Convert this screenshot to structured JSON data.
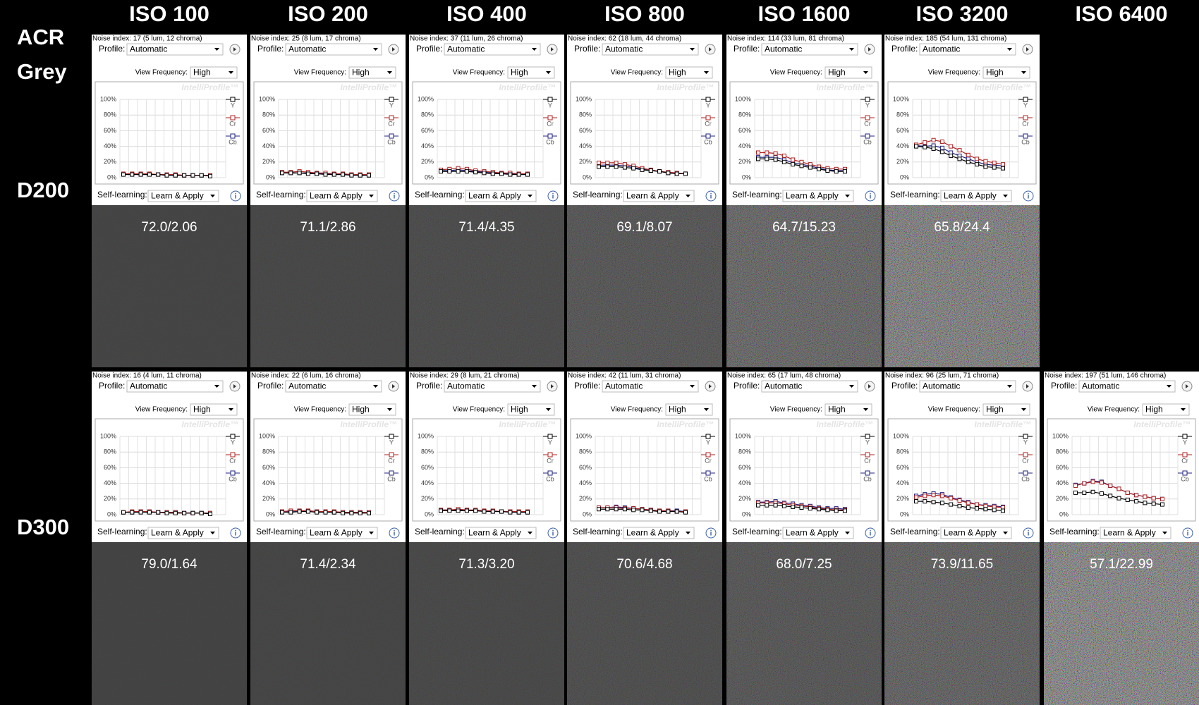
{
  "columns": [
    "ISO 100",
    "ISO 200",
    "ISO 400",
    "ISO 800",
    "ISO 1600",
    "ISO 3200",
    "ISO 6400"
  ],
  "corner_label": [
    "ACR",
    "Grey"
  ],
  "panel_ui": {
    "profile_label": "Profile:",
    "profile": "Automatic",
    "view_frequency_label": "View Frequency:",
    "view_frequency": "High",
    "watermark": "IntelliProfile™",
    "self_learning_label": "Self-learning:",
    "self_learning": "Learn & Apply",
    "info": "i",
    "ylim": [
      0,
      100
    ],
    "yticks": [
      {
        "value": 0,
        "label": "0%"
      },
      {
        "value": 20,
        "label": "20%"
      },
      {
        "value": 40,
        "label": "40%"
      },
      {
        "value": 60,
        "label": "60%"
      },
      {
        "value": 80,
        "label": "80%"
      },
      {
        "value": 100,
        "label": "100%"
      }
    ],
    "series": [
      {
        "name": "Y",
        "color": "#000000"
      },
      {
        "name": "Cr",
        "color": "#b02020"
      },
      {
        "name": "Cb",
        "color": "#202080"
      }
    ]
  },
  "rows": [
    {
      "label": "D200",
      "panels": [
        {
          "noise_index": "Noise index:  17 (5 lum, 12 chroma)",
          "result": "72.0/2.06",
          "series": [
            [
              4,
              4,
              4,
              4,
              4,
              3,
              3,
              3,
              3,
              3,
              2
            ],
            [
              5,
              5,
              5,
              5,
              4,
              4,
              4,
              3,
              3,
              3,
              3
            ],
            [
              4,
              4,
              4,
              4,
              4,
              3,
              3,
              3,
              3,
              3,
              2
            ]
          ]
        },
        {
          "noise_index": "Noise index:  25 (8 lum, 17 chroma)",
          "result": "71.1/2.86",
          "series": [
            [
              6,
              6,
              6,
              5,
              5,
              4,
              4,
              4,
              3,
              3,
              3
            ],
            [
              7,
              7,
              8,
              7,
              6,
              6,
              5,
              5,
              4,
              4,
              4
            ],
            [
              6,
              6,
              6,
              6,
              5,
              5,
              4,
              4,
              4,
              3,
              3
            ]
          ]
        },
        {
          "noise_index": "Noise index:  37 (11 lum, 26 chroma)",
          "result": "71.4/4.35",
          "series": [
            [
              8,
              8,
              8,
              8,
              7,
              6,
              5,
              5,
              4,
              4,
              4
            ],
            [
              10,
              11,
              12,
              11,
              9,
              8,
              7,
              6,
              6,
              5,
              5
            ],
            [
              9,
              9,
              10,
              9,
              8,
              7,
              6,
              5,
              5,
              4,
              4
            ]
          ]
        },
        {
          "noise_index": "Noise index:  62 (18 lum, 44 chroma)",
          "result": "69.1/8.07",
          "series": [
            [
              14,
              14,
              14,
              13,
              12,
              10,
              9,
              8,
              6,
              5,
              5
            ],
            [
              19,
              19,
              19,
              17,
              15,
              12,
              10,
              8,
              7,
              6,
              5
            ],
            [
              16,
              16,
              16,
              15,
              13,
              11,
              9,
              8,
              6,
              5,
              5
            ]
          ]
        },
        {
          "noise_index": "Noise index:  114 (33 lum, 81 chroma)",
          "result": "64.7/15.23",
          "series": [
            [
              24,
              24,
              23,
              20,
              17,
              15,
              13,
              11,
              9,
              8,
              8
            ],
            [
              32,
              32,
              31,
              28,
              23,
              20,
              17,
              14,
              12,
              11,
              11
            ],
            [
              26,
              26,
              26,
              23,
              19,
              17,
              15,
              12,
              10,
              9,
              9
            ]
          ]
        },
        {
          "noise_index": "Noise index:  185 (54 lum, 131 chroma)",
          "result": "65.8/24.4",
          "series": [
            [
              40,
              39,
              37,
              33,
              28,
              24,
              20,
              17,
              14,
              13,
              12
            ],
            [
              42,
              45,
              48,
              46,
              40,
              35,
              29,
              24,
              21,
              19,
              17
            ],
            [
              41,
              40,
              41,
              38,
              32,
              28,
              24,
              20,
              17,
              16,
              15
            ]
          ]
        }
      ]
    },
    {
      "label": "D300",
      "panels": [
        {
          "noise_index": "Noise index:  16 (4 lum, 11 chroma)",
          "result": "79.0/1.64",
          "series": [
            [
              3,
              3,
              3,
              3,
              3,
              2,
              2,
              2,
              2,
              2,
              1
            ],
            [
              3,
              4,
              4,
              4,
              3,
              3,
              3,
              2,
              2,
              2,
              2
            ],
            [
              3,
              3,
              4,
              4,
              3,
              3,
              3,
              2,
              2,
              2,
              2
            ]
          ]
        },
        {
          "noise_index": "Noise index:  22 (6 lum, 16 chroma)",
          "result": "71.4/2.34",
          "series": [
            [
              3,
              3,
              4,
              4,
              3,
              3,
              3,
              2,
              2,
              2,
              2
            ],
            [
              4,
              5,
              5,
              5,
              4,
              4,
              4,
              3,
              3,
              3,
              3
            ],
            [
              4,
              4,
              5,
              5,
              4,
              4,
              3,
              3,
              3,
              3,
              2
            ]
          ]
        },
        {
          "noise_index": "Noise index:  29 (8 lum, 21 chroma)",
          "result": "71.3/3.20",
          "series": [
            [
              5,
              5,
              5,
              5,
              5,
              4,
              4,
              4,
              3,
              3,
              3
            ],
            [
              6,
              6,
              7,
              6,
              6,
              5,
              5,
              4,
              4,
              4,
              4
            ],
            [
              6,
              6,
              6,
              6,
              5,
              5,
              4,
              4,
              4,
              3,
              3
            ]
          ]
        },
        {
          "noise_index": "Noise index:  42 (11 lum, 31 chroma)",
          "result": "70.6/4.68",
          "series": [
            [
              7,
              7,
              7,
              7,
              6,
              6,
              5,
              4,
              4,
              4,
              3
            ],
            [
              9,
              9,
              9,
              8,
              8,
              7,
              6,
              5,
              5,
              4,
              4
            ],
            [
              9,
              9,
              10,
              9,
              8,
              7,
              6,
              5,
              5,
              5,
              4
            ]
          ]
        },
        {
          "noise_index": "Noise index:  65 (17 lum, 48 chroma)",
          "result": "68.0/7.25",
          "series": [
            [
              12,
              12,
              12,
              11,
              10,
              9,
              8,
              7,
              6,
              5,
              5
            ],
            [
              15,
              15,
              15,
              14,
              12,
              11,
              10,
              8,
              7,
              6,
              6
            ],
            [
              16,
              16,
              17,
              15,
              14,
              12,
              11,
              9,
              8,
              8,
              7
            ]
          ]
        },
        {
          "noise_index": "Noise index:  96 (25 lum, 71 chroma)",
          "result": "73.9/11.65",
          "series": [
            [
              17,
              17,
              16,
              15,
              13,
              11,
              9,
              8,
              7,
              6,
              5
            ],
            [
              22,
              24,
              25,
              24,
              21,
              18,
              15,
              13,
              11,
              10,
              9
            ],
            [
              24,
              26,
              27,
              26,
              22,
              19,
              16,
              13,
              12,
              11,
              10
            ]
          ]
        },
        {
          "noise_index": "Noise index:  197 (51 lum, 146 chroma)",
          "result": "57.1/22.99",
          "series": [
            [
              28,
              28,
              29,
              27,
              24,
              21,
              19,
              17,
              15,
              14,
              13
            ],
            [
              37,
              40,
              42,
              41,
              37,
              33,
              28,
              25,
              23,
              21,
              20
            ],
            [
              38,
              40,
              43,
              42,
              37,
              33,
              28,
              25,
              23,
              21,
              20
            ]
          ]
        }
      ]
    }
  ]
}
